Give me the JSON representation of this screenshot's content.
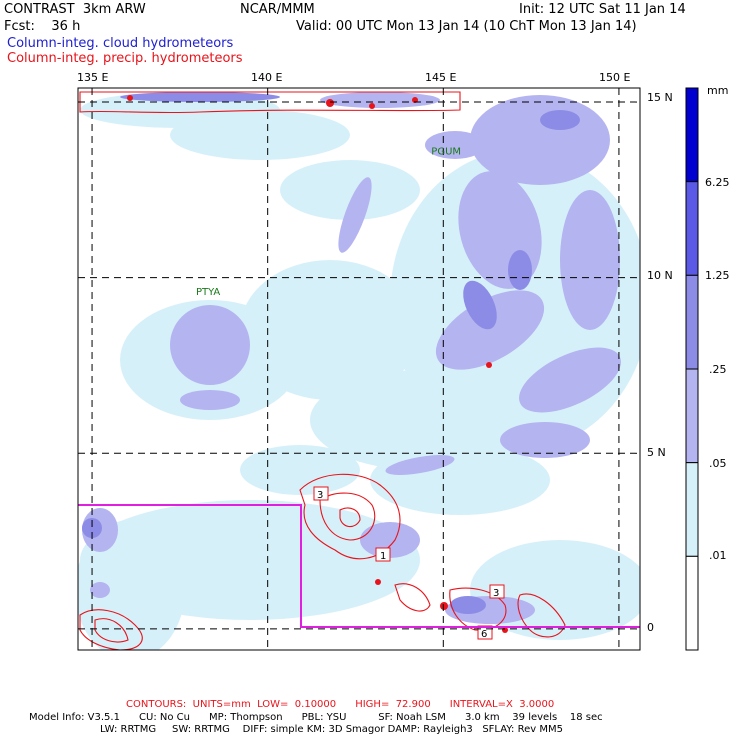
{
  "header": {
    "model": "CONTRAST  3km ARW",
    "center": "NCAR/MMM",
    "init": "Init: 12 UTC Sat 11 Jan 14",
    "fcst": "Fcst:    36 h",
    "valid": "Valid: 00 UTC Mon 13 Jan 14 (10 ChT Mon 13 Jan 14)",
    "field1": "Column-integ. cloud hydrometeors",
    "field2": "Column-integ. precip. hydrometeors",
    "field1_color": "#2020d0",
    "field2_color": "#e8141b"
  },
  "chart_data": {
    "type": "heatmap",
    "title": "",
    "lon_ticks": [
      "135 E",
      "140 E",
      "145 E",
      "150 E"
    ],
    "lat_ticks": [
      "15 N",
      "10 N",
      "5 N",
      "0"
    ],
    "lon_values": [
      135,
      140,
      145,
      150
    ],
    "lat_values": [
      15,
      10,
      5,
      0
    ],
    "xlim": [
      134.6,
      150.6
    ],
    "ylim": [
      -0.6,
      15.4
    ],
    "grid": true,
    "colorbar": {
      "unit": "mm",
      "labels": [
        "6.25",
        "1.25",
        ".25",
        ".05",
        ".01"
      ],
      "levels": [
        0,
        0.01,
        0.05,
        0.25,
        1.25,
        6.25
      ],
      "colors": [
        "#ffffff",
        "#d6f0fa",
        "#b4b4f0",
        "#8c8ce6",
        "#5a5ae6",
        "#0000d0"
      ]
    },
    "stations": [
      {
        "name": "PGUM",
        "lon": 145.0,
        "lat": 13.5
      },
      {
        "name": "PTYA",
        "lon": 138.3,
        "lat": 9.5
      }
    ],
    "labels_boxed": [
      "3",
      "1",
      "3",
      "6"
    ]
  },
  "footer": {
    "contours": "CONTOURS:  UNITS=mm  LOW=  0.10000      HIGH=  72.900      INTERVAL=X  3.0000",
    "model_info_1": "Model Info: V3.5.1      CU: No Cu      MP: Thompson      PBL: YSU          SF: Noah LSM      3.0 km    39 levels    18 sec",
    "model_info_2": "LW: RRTMG     SW: RRTMG    DIFF: simple KM: 3D Smagor DAMP: Rayleigh3   SFLAY: Rev MM5"
  }
}
